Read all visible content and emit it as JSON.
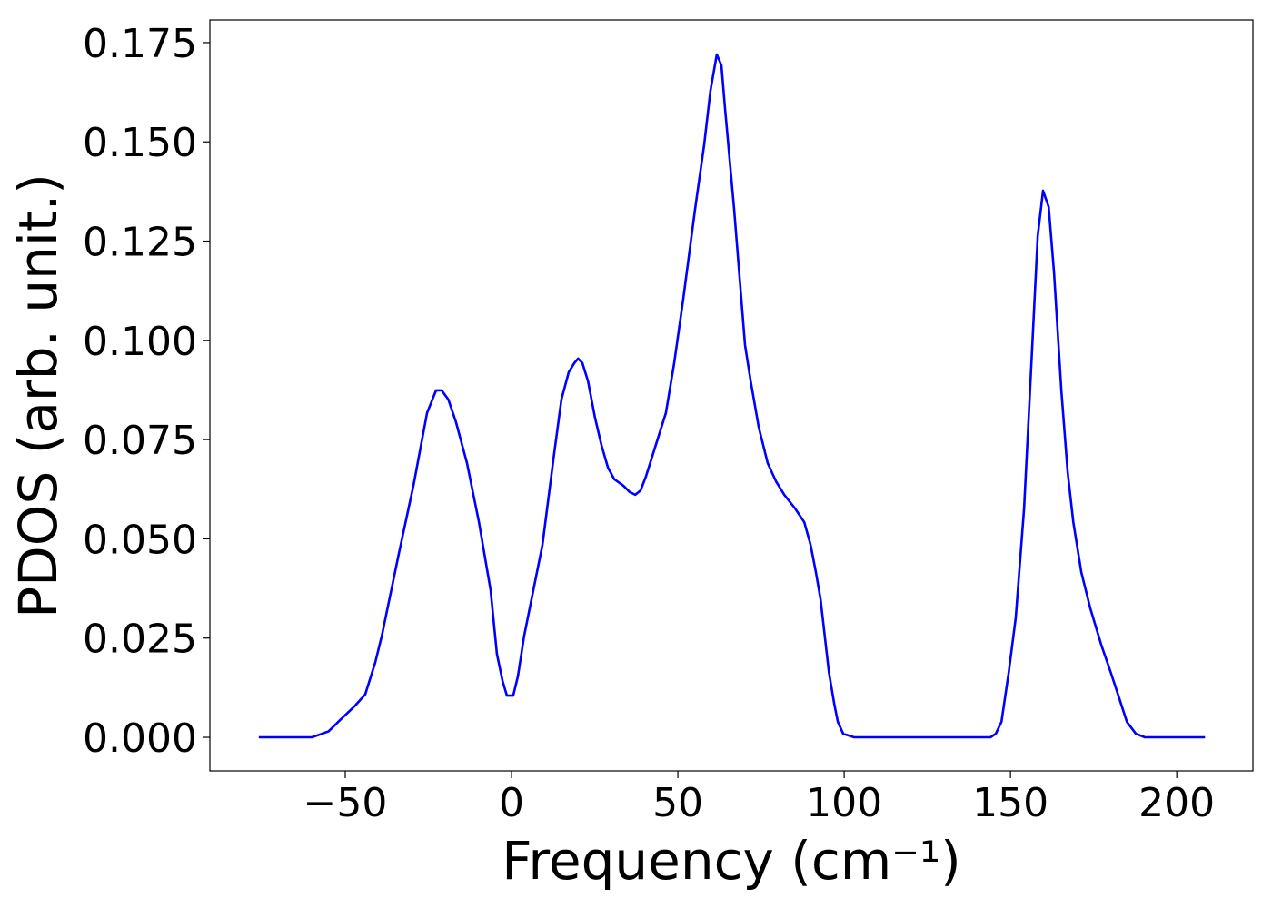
{
  "chart_data": {
    "type": "line",
    "xlabel": "Frequency (cm⁻¹)",
    "ylabel": "PDOS (arb. unit.)",
    "color": "#0000ff",
    "x": [
      -76,
      -60,
      -55,
      -52,
      -47,
      -44,
      -41,
      -39,
      -34,
      -29.5,
      -25.4,
      -22.7,
      -21,
      -19,
      -16.7,
      -13.4,
      -9.8,
      -6.3,
      -4.4,
      -2.7,
      -1.4,
      0.5,
      1.9,
      3.8,
      9.3,
      12.8,
      15,
      17.2,
      18.9,
      20,
      21.3,
      23,
      25.1,
      27,
      29,
      30.9,
      33.6,
      35.5,
      37.2,
      38.8,
      40.4,
      43.4,
      46.4,
      48.9,
      51.6,
      55.2,
      57.9,
      59.8,
      61.7,
      63.1,
      64.2,
      66.9,
      70.2,
      71.9,
      74.3,
      77,
      79.5,
      82,
      85.2,
      88,
      89.9,
      91.5,
      92.9,
      95.4,
      97,
      98.1,
      99.7,
      103,
      144,
      145.6,
      147.3,
      149.5,
      151.6,
      154.1,
      156.3,
      158.2,
      159.8,
      161.5,
      163.1,
      165.3,
      167.2,
      168.9,
      171.3,
      174,
      177.3,
      180.1,
      182.8,
      185,
      187.7,
      190.4,
      208.5
    ],
    "values": [
      0,
      0,
      0.0015,
      0.004,
      0.008,
      0.0108,
      0.0188,
      0.0256,
      0.0458,
      0.0634,
      0.0817,
      0.0874,
      0.0874,
      0.0851,
      0.0794,
      0.0691,
      0.0542,
      0.0371,
      0.021,
      0.0142,
      0.0105,
      0.0105,
      0.0153,
      0.0256,
      0.0485,
      0.0714,
      0.0851,
      0.092,
      0.0943,
      0.0954,
      0.0943,
      0.0897,
      0.0805,
      0.0737,
      0.0679,
      0.065,
      0.0634,
      0.0618,
      0.0611,
      0.0622,
      0.0657,
      0.0737,
      0.0817,
      0.0943,
      0.1103,
      0.1332,
      0.1492,
      0.1629,
      0.172,
      0.1693,
      0.1583,
      0.1332,
      0.0988,
      0.0897,
      0.0782,
      0.0691,
      0.0645,
      0.0611,
      0.0577,
      0.0542,
      0.0485,
      0.0416,
      0.0348,
      0.0165,
      0.0085,
      0.0039,
      0.0009,
      0,
      0,
      0.0009,
      0.0039,
      0.0165,
      0.0302,
      0.0577,
      0.0943,
      0.1263,
      0.1377,
      0.1336,
      0.1171,
      0.0874,
      0.0668,
      0.0542,
      0.0416,
      0.0325,
      0.0233,
      0.0165,
      0.0096,
      0.0039,
      0.0009,
      0,
      0
    ],
    "xlim": [
      -90.7,
      222.9
    ],
    "ylim": [
      -0.00846,
      0.1807
    ],
    "xticks": [
      {
        "value": -50,
        "label": "−50"
      },
      0,
      50,
      100,
      150,
      200
    ],
    "yticks": [
      {
        "value": 0,
        "label": "0.000"
      },
      {
        "value": 0.025,
        "label": "0.025"
      },
      {
        "value": 0.05,
        "label": "0.050"
      },
      {
        "value": 0.075,
        "label": "0.075"
      },
      {
        "value": 0.1,
        "label": "0.100"
      },
      {
        "value": 0.125,
        "label": "0.125"
      },
      {
        "value": 0.15,
        "label": "0.150"
      },
      {
        "value": 0.175,
        "label": "0.175"
      }
    ]
  }
}
